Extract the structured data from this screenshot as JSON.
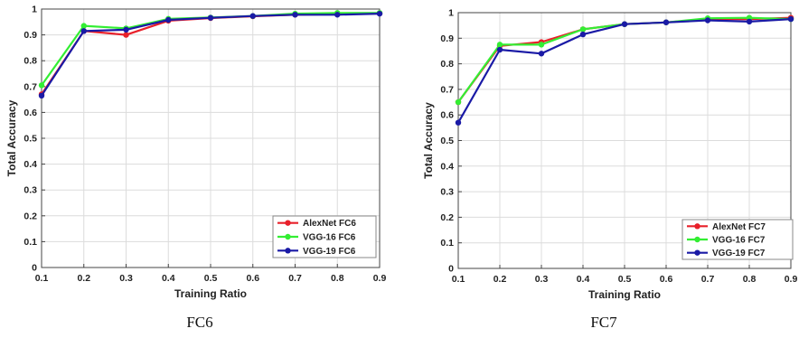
{
  "chart_data": [
    {
      "type": "line",
      "caption": "FC6",
      "xlabel": "Training Ratio",
      "ylabel": "Total Accuracy",
      "x": [
        0.1,
        0.2,
        0.3,
        0.4,
        0.5,
        0.6,
        0.7,
        0.8,
        0.9
      ],
      "xticks": [
        "0.1",
        "0.2",
        "0.3",
        "0.4",
        "0.5",
        "0.6",
        "0.7",
        "0.8",
        "0.9"
      ],
      "yticks": [
        "0",
        "0.1",
        "0.2",
        "0.3",
        "0.4",
        "0.5",
        "0.6",
        "0.7",
        "0.8",
        "0.9",
        "1"
      ],
      "xlim": [
        0.1,
        0.9
      ],
      "ylim": [
        0,
        1
      ],
      "grid": true,
      "legend_position": "bottom-right",
      "series": [
        {
          "name": "AlexNet FC6",
          "color": "#e8202a",
          "values": [
            0.67,
            0.915,
            0.9,
            0.955,
            0.965,
            0.972,
            0.978,
            0.98,
            0.983
          ]
        },
        {
          "name": "VGG-16 FC6",
          "color": "#33ee33",
          "values": [
            0.705,
            0.935,
            0.925,
            0.962,
            0.967,
            0.973,
            0.982,
            0.985,
            0.985
          ]
        },
        {
          "name": "VGG-19 FC6",
          "color": "#1a1aa6",
          "values": [
            0.665,
            0.915,
            0.92,
            0.958,
            0.966,
            0.973,
            0.978,
            0.978,
            0.982
          ]
        }
      ]
    },
    {
      "type": "line",
      "caption": "FC7",
      "xlabel": "Training Ratio",
      "ylabel": "Total Accuracy",
      "x": [
        0.1,
        0.2,
        0.3,
        0.4,
        0.5,
        0.6,
        0.7,
        0.8,
        0.9
      ],
      "xticks": [
        "0.1",
        "0.2",
        "0.3",
        "0.4",
        "0.5",
        "0.6",
        "0.7",
        "0.8",
        "0.9"
      ],
      "yticks": [
        "0",
        "0.1",
        "0.2",
        "0.3",
        "0.4",
        "0.5",
        "0.6",
        "0.7",
        "0.8",
        "0.9",
        "1"
      ],
      "xlim": [
        0.1,
        0.9
      ],
      "ylim": [
        0,
        1
      ],
      "grid": true,
      "legend_position": "bottom-right",
      "series": [
        {
          "name": "AlexNet FC7",
          "color": "#e8202a",
          "values": [
            0.65,
            0.87,
            0.885,
            0.935,
            0.955,
            0.962,
            0.975,
            0.975,
            0.98
          ]
        },
        {
          "name": "VGG-16 FC7",
          "color": "#33ee33",
          "values": [
            0.65,
            0.875,
            0.875,
            0.935,
            0.955,
            0.962,
            0.978,
            0.98,
            0.975
          ]
        },
        {
          "name": "VGG-19 FC7",
          "color": "#1a1aa6",
          "values": [
            0.57,
            0.855,
            0.84,
            0.915,
            0.955,
            0.962,
            0.97,
            0.965,
            0.975
          ]
        }
      ]
    }
  ]
}
